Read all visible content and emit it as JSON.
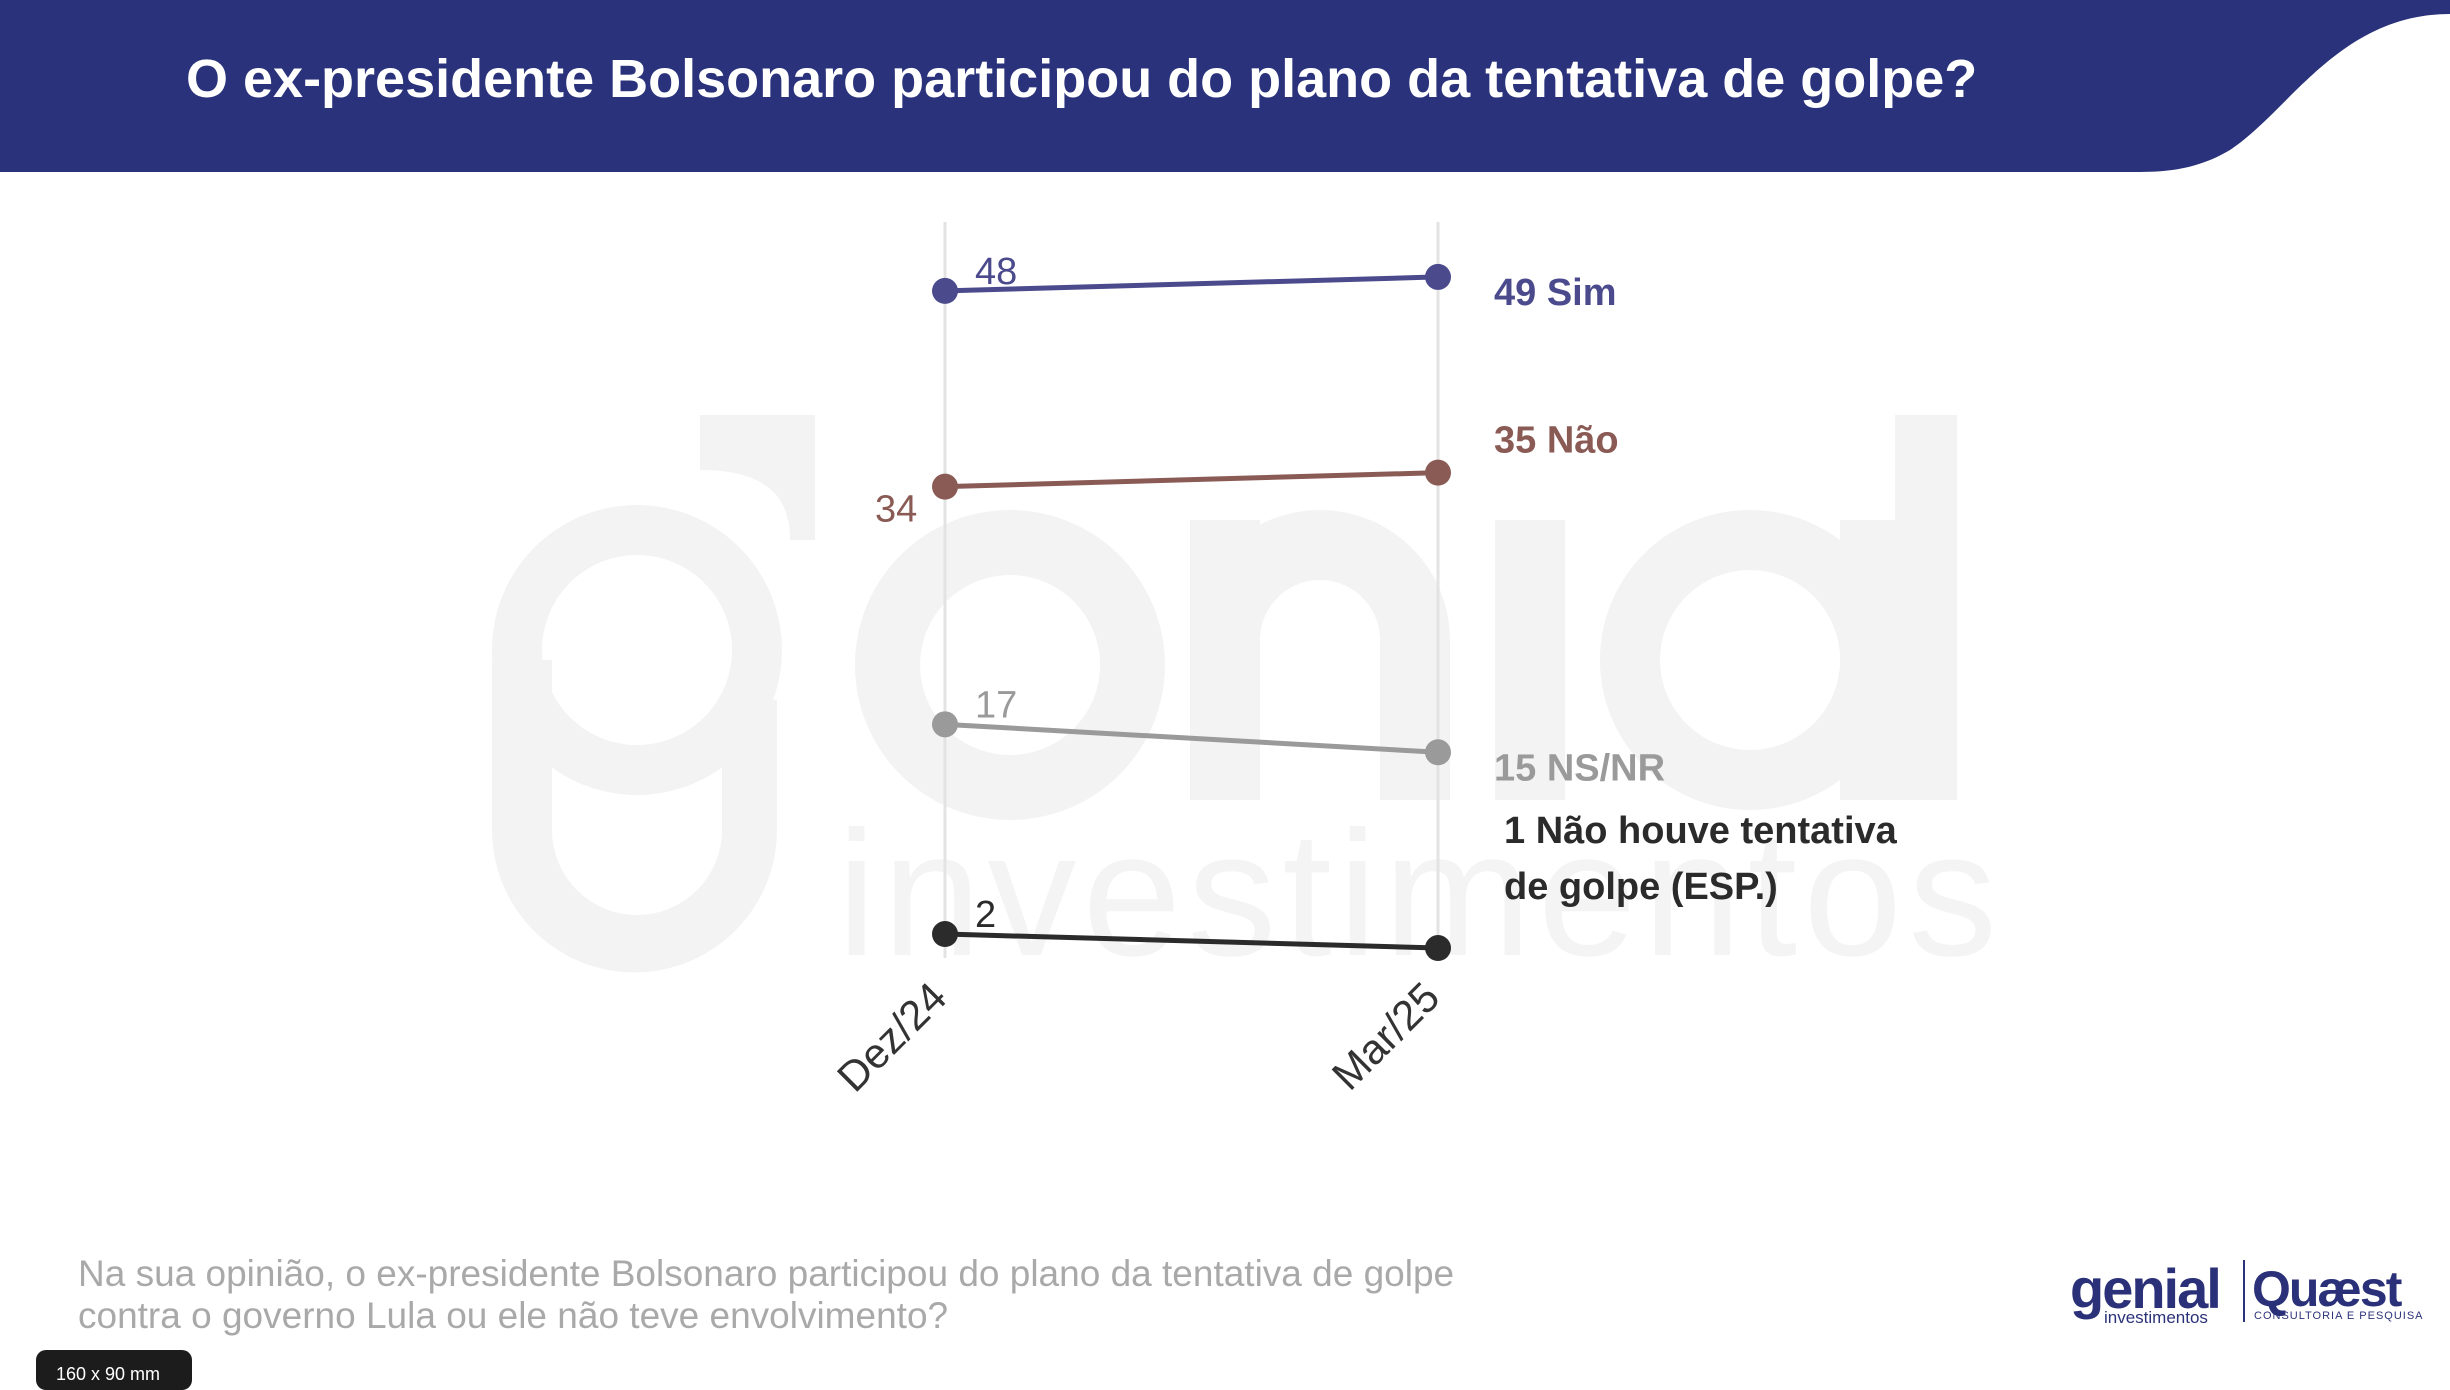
{
  "header": {
    "title": "O ex-presidente Bolsonaro participou do plano da tentativa de golpe?",
    "color": "#29327a"
  },
  "watermark": {
    "word": "genial",
    "sub": "investimentos"
  },
  "question": "Na sua opinião, o ex-presidente Bolsonaro participou do plano da tentativa de golpe contra o governo Lula ou ele não teve envolvimento?",
  "size_tag": "160 x 90 mm",
  "logos": {
    "genial": "genial",
    "genial_sub": "investimentos",
    "quaest": "Quæst",
    "quaest_sub": "CONSULTORIA E PESQUISA"
  },
  "chart_data": {
    "type": "line",
    "categories": [
      "Dez/24",
      "Mar/25"
    ],
    "ylim": [
      0,
      55
    ],
    "grid": "vertical",
    "series": [
      {
        "name": "Sim",
        "values": [
          48,
          49
        ],
        "color": "#4b4a8c",
        "end_label": "49 Sim",
        "start_label": "48"
      },
      {
        "name": "Não",
        "values": [
          34,
          35
        ],
        "color": "#8a5a55",
        "end_label": "35 Não",
        "start_label": "34"
      },
      {
        "name": "NS/NR",
        "values": [
          17,
          15
        ],
        "color": "#9a9a9a",
        "end_label": "15 NS/NR",
        "start_label": "17"
      },
      {
        "name": "Não houve tentativa de golpe (ESP.)",
        "values": [
          2,
          1
        ],
        "color": "#2b2b2b",
        "end_label_lines": [
          "1 Não houve tentativa",
          "de golpe (ESP.)"
        ],
        "start_label": "2"
      }
    ]
  }
}
